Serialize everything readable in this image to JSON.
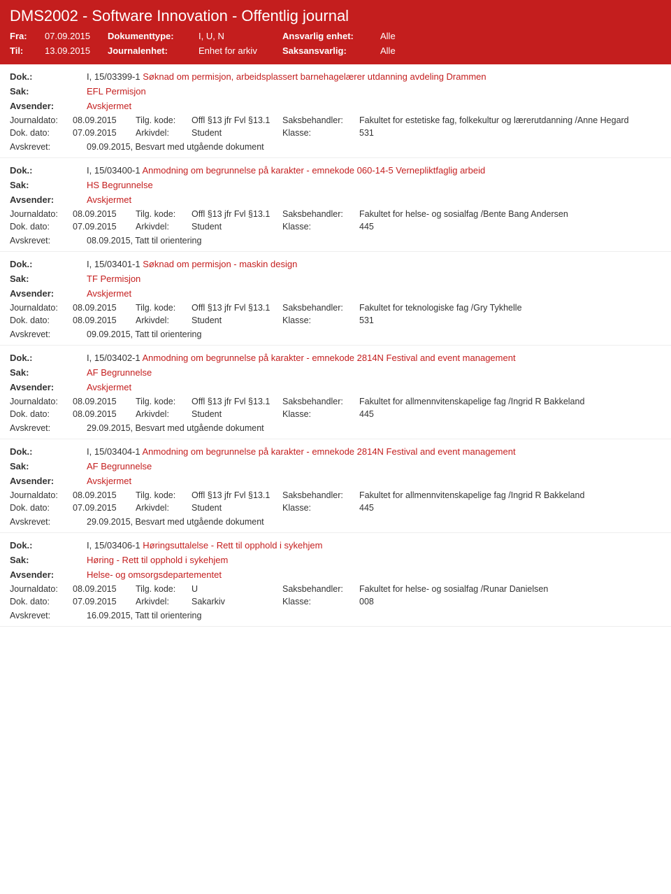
{
  "header": {
    "title": "DMS2002 - Software Innovation - Offentlig journal",
    "fra_lbl": "Fra:",
    "fra_val": "07.09.2015",
    "til_lbl": "Til:",
    "til_val": "13.09.2015",
    "doktype_lbl": "Dokumenttype:",
    "doktype_val": "I, U, N",
    "journalenhet_lbl": "Journalenhet:",
    "journalenhet_val": "Enhet for arkiv",
    "ansvarlig_lbl": "Ansvarlig enhet:",
    "ansvarlig_val": "Alle",
    "saksansvarlig_lbl": "Saksansvarlig:",
    "saksansvarlig_val": "Alle"
  },
  "labels": {
    "dok": "Dok.:",
    "sak": "Sak:",
    "avsender": "Avsender:",
    "journaldato": "Journaldato:",
    "tilgkode": "Tilg. kode:",
    "saksbehandler": "Saksbehandler:",
    "dokdato": "Dok. dato:",
    "arkivdel": "Arkivdel:",
    "klasse": "Klasse:",
    "avskrevet": "Avskrevet:"
  },
  "entries": [
    {
      "dok_prefix": "I, 15/03399-1 ",
      "dok_rest": "Søknad om permisjon, arbeidsplassert barnehagelærer utdanning avdeling Drammen",
      "sak": "EFL Permisjon",
      "avsender": "Avskjermet",
      "journaldato": "08.09.2015",
      "tilgkode": "Offl §13 jfr Fvl §13.1",
      "saksbehandler": "Fakultet for estetiske fag, folkekultur og lærerutdanning /Anne Hegard",
      "dokdato": "07.09.2015",
      "arkivdel": "Student",
      "klasse": "531",
      "avskrevet": "09.09.2015, Besvart med utgående dokument"
    },
    {
      "dok_prefix": "I, 15/03400-1 ",
      "dok_rest": "Anmodning om begrunnelse på karakter - emnekode 060-14-5 Vernepliktfaglig arbeid",
      "sak": "HS Begrunnelse",
      "avsender": "Avskjermet",
      "journaldato": "08.09.2015",
      "tilgkode": "Offl §13 jfr Fvl §13.1",
      "saksbehandler": "Fakultet for helse- og sosialfag /Bente Bang Andersen",
      "dokdato": "07.09.2015",
      "arkivdel": "Student",
      "klasse": "445",
      "avskrevet": "08.09.2015, Tatt til orientering"
    },
    {
      "dok_prefix": "I, 15/03401-1 ",
      "dok_rest": "Søknad om permisjon - maskin design",
      "sak": "TF Permisjon",
      "avsender": "Avskjermet",
      "journaldato": "08.09.2015",
      "tilgkode": "Offl §13 jfr Fvl §13.1",
      "saksbehandler": "Fakultet for teknologiske fag /Gry Tykhelle",
      "dokdato": "08.09.2015",
      "arkivdel": "Student",
      "klasse": "531",
      "avskrevet": "09.09.2015, Tatt til orientering"
    },
    {
      "dok_prefix": "I, 15/03402-1 ",
      "dok_rest": "Anmodning om begrunnelse på karakter - emnekode 2814N Festival and event management",
      "sak": "AF Begrunnelse",
      "avsender": "Avskjermet",
      "journaldato": "08.09.2015",
      "tilgkode": "Offl §13 jfr Fvl §13.1",
      "saksbehandler": "Fakultet for allmennvitenskapelige fag /Ingrid R Bakkeland",
      "dokdato": "08.09.2015",
      "arkivdel": "Student",
      "klasse": "445",
      "avskrevet": "29.09.2015, Besvart med utgående dokument"
    },
    {
      "dok_prefix": "I, 15/03404-1 ",
      "dok_rest": "Anmodning om begrunnelse på karakter - emnekode 2814N Festival and event management",
      "sak": "AF Begrunnelse",
      "avsender": "Avskjermet",
      "journaldato": "08.09.2015",
      "tilgkode": "Offl §13 jfr Fvl §13.1",
      "saksbehandler": "Fakultet for allmennvitenskapelige fag /Ingrid R Bakkeland",
      "dokdato": "07.09.2015",
      "arkivdel": "Student",
      "klasse": "445",
      "avskrevet": "29.09.2015, Besvart med utgående dokument"
    },
    {
      "dok_prefix": "I, 15/03406-1 ",
      "dok_rest": "Høringsuttalelse - Rett til opphold i sykehjem",
      "sak": "Høring - Rett til opphold i sykehjem",
      "avsender": "Helse- og omsorgsdepartementet",
      "journaldato": "08.09.2015",
      "tilgkode": "U",
      "saksbehandler": "Fakultet for helse- og sosialfag /Runar Danielsen",
      "dokdato": "07.09.2015",
      "arkivdel": "Sakarkiv",
      "klasse": "008",
      "avskrevet": "16.09.2015, Tatt til orientering"
    }
  ]
}
